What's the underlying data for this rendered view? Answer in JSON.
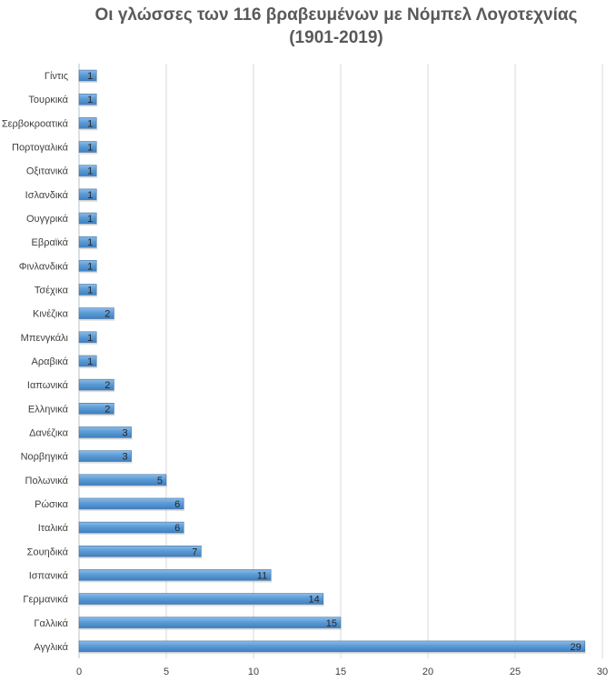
{
  "chart_data": {
    "type": "bar",
    "orientation": "horizontal",
    "title_line1": "Οι γλώσσες των 116 βραβευμένων με Νόμπελ Λογοτεχνίας",
    "title_line2": "(1901-2019)",
    "xlim": [
      0,
      30
    ],
    "xticks": [
      0,
      5,
      10,
      15,
      20,
      25,
      30
    ],
    "grid": true,
    "data_labels": true,
    "bar_color": "#5b9bd5",
    "categories": [
      "Γίντις",
      "Τουρκικά",
      "Σερβοκροατικά",
      "Πορτογαλικά",
      "Οξιτανικά",
      "Ισλανδικά",
      "Ουγγρικά",
      "Εβραϊκά",
      "Φινλανδικά",
      "Τσέχικα",
      "Κινέζικα",
      "Μπενγκάλι",
      "Αραβικά",
      "Ιαπωνικά",
      "Ελληνικά",
      "Δανέζικα",
      "Νορβηγικά",
      "Πολωνικά",
      "Ρώσικα",
      "Ιταλικά",
      "Σουηδικά",
      "Ισπανικά",
      "Γερμανικά",
      "Γαλλικά",
      "Αγγλικά"
    ],
    "values": [
      1,
      1,
      1,
      1,
      1,
      1,
      1,
      1,
      1,
      1,
      2,
      1,
      1,
      2,
      2,
      3,
      3,
      5,
      6,
      6,
      7,
      11,
      14,
      15,
      29
    ]
  }
}
